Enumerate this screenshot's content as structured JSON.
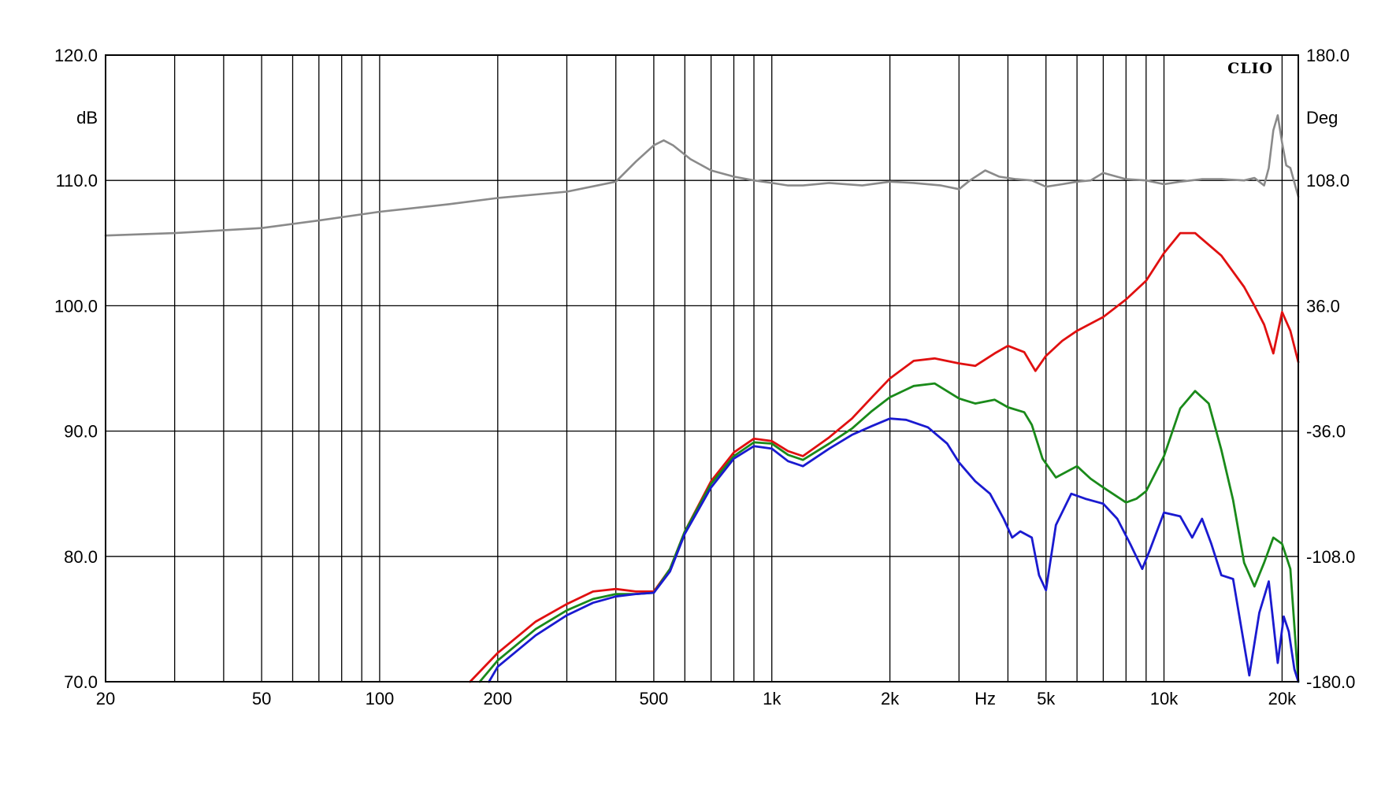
{
  "chart_data": {
    "type": "line",
    "brand": "CLIO",
    "x_scale": "log",
    "xlim": [
      20,
      22000
    ],
    "ylim": [
      70,
      120
    ],
    "y2lim": [
      -180,
      180
    ],
    "y_unit": "dB",
    "y2_unit": "Deg",
    "x_unit": "Hz",
    "grid": true,
    "x_ticks": [
      {
        "value": 20,
        "label": "20"
      },
      {
        "value": 50,
        "label": "50"
      },
      {
        "value": 100,
        "label": "100"
      },
      {
        "value": 200,
        "label": "200"
      },
      {
        "value": 500,
        "label": "500"
      },
      {
        "value": 1000,
        "label": "1k"
      },
      {
        "value": 2000,
        "label": "2k"
      },
      {
        "value": 5000,
        "label": "5k"
      },
      {
        "value": 10000,
        "label": "10k"
      },
      {
        "value": 20000,
        "label": "20k"
      }
    ],
    "y_ticks": [
      {
        "value": 120,
        "label": "120.0"
      },
      {
        "value": 110,
        "label": "110.0"
      },
      {
        "value": 100,
        "label": "100.0"
      },
      {
        "value": 90,
        "label": "90.0"
      },
      {
        "value": 80,
        "label": "80.0"
      },
      {
        "value": 70,
        "label": "70.0"
      }
    ],
    "y2_ticks": [
      {
        "value": 180,
        "label": "180.0"
      },
      {
        "value": 108,
        "label": "108.0"
      },
      {
        "value": 36,
        "label": "36.0"
      },
      {
        "value": -36,
        "label": "-36.0"
      },
      {
        "value": -108,
        "label": "-108.0"
      },
      {
        "value": -180,
        "label": "-180.0"
      }
    ],
    "colors": {
      "gray": "#8a8a8a",
      "red": "#e01010",
      "green": "#1a8a1a",
      "blue": "#1a1ad0",
      "grid": "#000000"
    },
    "series": [
      {
        "color_key": "gray",
        "x": [
          20,
          30,
          50,
          70,
          100,
          150,
          200,
          300,
          400,
          450,
          500,
          530,
          560,
          620,
          700,
          800,
          900,
          1000,
          1100,
          1200,
          1400,
          1700,
          2000,
          2300,
          2700,
          3000,
          3200,
          3500,
          3800,
          4200,
          4600,
          5000,
          5500,
          6000,
          6500,
          7000,
          8000,
          9000,
          10000,
          11000,
          12500,
          14000,
          16000,
          17000,
          18000,
          18500,
          19000,
          19500,
          20000,
          20500,
          21000,
          22000
        ],
        "values": [
          105.6,
          105.8,
          106.2,
          106.8,
          107.5,
          108.1,
          108.6,
          109.1,
          109.9,
          111.5,
          112.8,
          113.2,
          112.8,
          111.7,
          110.8,
          110.3,
          110.0,
          109.8,
          109.6,
          109.6,
          109.8,
          109.6,
          109.9,
          109.8,
          109.6,
          109.3,
          110.0,
          110.8,
          110.3,
          110.1,
          110.0,
          109.5,
          109.7,
          109.9,
          110.0,
          110.6,
          110.1,
          110.0,
          109.7,
          109.9,
          110.1,
          110.1,
          110.0,
          110.2,
          109.6,
          111.0,
          114.0,
          115.2,
          113.0,
          111.2,
          111.0,
          108.7
        ]
      },
      {
        "color_key": "red",
        "x": [
          170,
          200,
          250,
          300,
          350,
          400,
          450,
          500,
          550,
          600,
          700,
          800,
          900,
          1000,
          1100,
          1200,
          1400,
          1600,
          1800,
          2000,
          2300,
          2600,
          3000,
          3300,
          3700,
          4000,
          4400,
          4700,
          5000,
          5500,
          6000,
          7000,
          8000,
          9000,
          10000,
          11000,
          12000,
          14000,
          16000,
          17000,
          18000,
          19000,
          20000,
          21000,
          22000
        ],
        "values": [
          70.0,
          72.3,
          74.8,
          76.2,
          77.2,
          77.4,
          77.2,
          77.2,
          79.0,
          82.0,
          86.0,
          88.3,
          89.4,
          89.2,
          88.4,
          88.0,
          89.5,
          91.0,
          92.7,
          94.2,
          95.6,
          95.8,
          95.4,
          95.2,
          96.2,
          96.8,
          96.3,
          94.8,
          96.0,
          97.2,
          98.0,
          99.1,
          100.5,
          102.0,
          104.2,
          105.8,
          105.8,
          104.0,
          101.5,
          100.0,
          98.5,
          96.2,
          99.5,
          98.0,
          95.5
        ]
      },
      {
        "color_key": "green",
        "x": [
          180,
          200,
          250,
          300,
          350,
          400,
          450,
          500,
          550,
          600,
          700,
          800,
          900,
          1000,
          1100,
          1200,
          1400,
          1600,
          1800,
          2000,
          2300,
          2600,
          3000,
          3300,
          3700,
          4000,
          4400,
          4600,
          4900,
          5300,
          6000,
          6500,
          7000,
          8000,
          8500,
          9000,
          10000,
          11000,
          12000,
          13000,
          14000,
          15000,
          16000,
          17000,
          18000,
          19000,
          20000,
          21000,
          22000
        ],
        "values": [
          70.0,
          71.7,
          74.2,
          75.7,
          76.6,
          77.0,
          77.0,
          77.1,
          79.0,
          82.0,
          85.8,
          88.0,
          89.1,
          89.0,
          88.1,
          87.7,
          89.0,
          90.2,
          91.6,
          92.7,
          93.6,
          93.8,
          92.6,
          92.2,
          92.5,
          91.9,
          91.5,
          90.5,
          87.8,
          86.3,
          87.2,
          86.2,
          85.5,
          84.3,
          84.6,
          85.2,
          88.0,
          91.8,
          93.2,
          92.2,
          88.5,
          84.5,
          79.5,
          77.6,
          79.5,
          81.5,
          81.0,
          79.0,
          70.0
        ]
      },
      {
        "color_key": "blue",
        "x": [
          190,
          200,
          250,
          300,
          350,
          400,
          450,
          500,
          550,
          600,
          700,
          800,
          900,
          1000,
          1100,
          1200,
          1400,
          1600,
          1800,
          2000,
          2200,
          2500,
          2800,
          3000,
          3300,
          3600,
          3900,
          4100,
          4300,
          4600,
          4800,
          5000,
          5300,
          5800,
          6300,
          7000,
          7600,
          8200,
          8800,
          9200,
          10000,
          11000,
          11800,
          12500,
          13200,
          14000,
          15000,
          16500,
          17500,
          18500,
          19500,
          20200,
          20800,
          21500,
          22000
        ],
        "values": [
          70.0,
          71.2,
          73.7,
          75.3,
          76.3,
          76.8,
          77.0,
          77.1,
          78.8,
          81.8,
          85.5,
          87.8,
          88.8,
          88.6,
          87.6,
          87.2,
          88.6,
          89.7,
          90.4,
          91.0,
          90.9,
          90.3,
          89.0,
          87.5,
          86.0,
          85.0,
          83.0,
          81.5,
          82.0,
          81.5,
          78.5,
          77.3,
          82.5,
          85.0,
          84.6,
          84.2,
          83.0,
          81.0,
          79.0,
          80.5,
          83.5,
          83.2,
          81.5,
          83.0,
          81.0,
          78.5,
          78.2,
          70.5,
          75.5,
          78.0,
          71.5,
          75.2,
          74.0,
          71.0,
          70.0
        ]
      }
    ]
  }
}
